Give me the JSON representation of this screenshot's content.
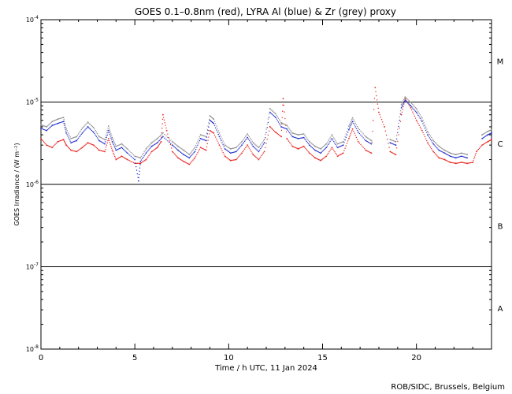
{
  "chart_data": {
    "type": "scatter",
    "title": "GOES 0.1–0.8nm (red), LYRA Al (blue) & Zr (grey) proxy",
    "xlabel": "Time / h UTC, 11 Jan 2024",
    "ylabel": "GOES Irradiance / (W m⁻²)",
    "credit": "ROB/SIDC, Brussels, Belgium",
    "xlim": [
      0,
      24
    ],
    "ylim": [
      1e-08,
      0.0001
    ],
    "yscale": "log",
    "x_ticks": [
      "0",
      "5",
      "10",
      "15",
      "20"
    ],
    "x_tick_values": [
      0,
      5,
      10,
      15,
      20
    ],
    "y_ticks": [
      {
        "value": 0.0001,
        "base": "10",
        "exp": "-4"
      },
      {
        "value": 1e-05,
        "base": "10",
        "exp": "-5"
      },
      {
        "value": 1e-06,
        "base": "10",
        "exp": "-6"
      },
      {
        "value": 1e-07,
        "base": "10",
        "exp": "-7"
      },
      {
        "value": 1e-08,
        "base": "10",
        "exp": "-8"
      }
    ],
    "flare_class_lines": [
      1e-05,
      1e-06,
      1e-07
    ],
    "flare_classes": [
      {
        "label": "M",
        "center": 3.16e-05
      },
      {
        "label": "C",
        "center": 3.16e-06
      },
      {
        "label": "B",
        "center": 3.16e-07
      },
      {
        "label": "A",
        "center": 3.16e-08
      }
    ],
    "colors": {
      "GOES": "#e8231f",
      "LYRA Al": "#1f2fcf",
      "LYRA Zr": "#8c8c8c"
    },
    "series": [
      {
        "name": "GOES",
        "color": "#e8231f",
        "points": [
          [
            0.0,
            3.6e-06
          ],
          [
            0.3,
            3e-06
          ],
          [
            0.6,
            2.8e-06
          ],
          [
            0.9,
            3.3e-06
          ],
          [
            1.2,
            3.5e-06
          ],
          [
            1.35,
            3e-06
          ],
          [
            1.6,
            2.6e-06
          ],
          [
            1.9,
            2.5e-06
          ],
          [
            2.2,
            2.8e-06
          ],
          [
            2.5,
            3.2e-06
          ],
          [
            2.8,
            3e-06
          ],
          [
            3.1,
            2.6e-06
          ],
          [
            3.4,
            2.5e-06
          ],
          [
            3.6,
            3.6e-06
          ],
          [
            3.8,
            2.6e-06
          ],
          [
            4.0,
            2e-06
          ],
          [
            4.3,
            2.2e-06
          ],
          [
            4.6,
            2e-06
          ],
          [
            5.0,
            1.8e-06
          ],
          [
            5.3,
            1.8e-06
          ],
          [
            5.6,
            2e-06
          ],
          [
            5.9,
            2.5e-06
          ],
          [
            6.2,
            2.8e-06
          ],
          [
            6.4,
            3.3e-06
          ],
          [
            6.5,
            7e-06
          ],
          [
            6.7,
            4.5e-06
          ],
          [
            7.0,
            2.5e-06
          ],
          [
            7.3,
            2.1e-06
          ],
          [
            7.6,
            1.9e-06
          ],
          [
            7.9,
            1.75e-06
          ],
          [
            8.2,
            2.1e-06
          ],
          [
            8.5,
            2.8e-06
          ],
          [
            8.8,
            2.6e-06
          ],
          [
            9.0,
            4.5e-06
          ],
          [
            9.2,
            4.2e-06
          ],
          [
            9.5,
            3e-06
          ],
          [
            9.8,
            2.2e-06
          ],
          [
            10.1,
            1.95e-06
          ],
          [
            10.4,
            2e-06
          ],
          [
            10.7,
            2.4e-06
          ],
          [
            11.0,
            3e-06
          ],
          [
            11.3,
            2.3e-06
          ],
          [
            11.6,
            2e-06
          ],
          [
            11.9,
            2.5e-06
          ],
          [
            12.2,
            5e-06
          ],
          [
            12.5,
            4.3e-06
          ],
          [
            12.8,
            3.8e-06
          ],
          [
            12.9,
            1.1e-05
          ],
          [
            13.1,
            3.6e-06
          ],
          [
            13.4,
            2.9e-06
          ],
          [
            13.7,
            2.7e-06
          ],
          [
            14.0,
            2.9e-06
          ],
          [
            14.3,
            2.4e-06
          ],
          [
            14.6,
            2.1e-06
          ],
          [
            14.9,
            1.95e-06
          ],
          [
            15.2,
            2.2e-06
          ],
          [
            15.5,
            2.8e-06
          ],
          [
            15.8,
            2.2e-06
          ],
          [
            16.1,
            2.4e-06
          ],
          [
            16.4,
            3.6e-06
          ],
          [
            16.6,
            4.7e-06
          ],
          [
            16.9,
            3.3e-06
          ],
          [
            17.3,
            2.6e-06
          ],
          [
            17.6,
            2.4e-06
          ],
          [
            17.8,
            1.5e-05
          ],
          [
            18.0,
            7.5e-06
          ],
          [
            18.3,
            5e-06
          ],
          [
            18.6,
            2.5e-06
          ],
          [
            18.9,
            2.3e-06
          ],
          [
            19.2,
            7e-06
          ],
          [
            19.4,
            1.1e-05
          ],
          [
            19.7,
            8.5e-06
          ],
          [
            20.0,
            6e-06
          ],
          [
            20.3,
            4.5e-06
          ],
          [
            20.6,
            3.2e-06
          ],
          [
            20.9,
            2.5e-06
          ],
          [
            21.2,
            2.1e-06
          ],
          [
            21.5,
            2e-06
          ],
          [
            21.8,
            1.85e-06
          ],
          [
            22.1,
            1.8e-06
          ],
          [
            22.4,
            1.85e-06
          ],
          [
            22.7,
            1.8e-06
          ],
          [
            23.0,
            1.85e-06
          ],
          [
            23.2,
            2.5e-06
          ],
          [
            23.5,
            3e-06
          ],
          [
            23.8,
            3.3e-06
          ],
          [
            24.0,
            3.5e-06
          ]
        ]
      },
      {
        "name": "LYRA Al",
        "color": "#1f2fcf",
        "points": [
          [
            0.0,
            4.8e-06
          ],
          [
            0.3,
            4.5e-06
          ],
          [
            0.6,
            5.2e-06
          ],
          [
            0.9,
            5.5e-06
          ],
          [
            1.2,
            5.8e-06
          ],
          [
            1.35,
            4.2e-06
          ],
          [
            1.6,
            3.2e-06
          ],
          [
            1.9,
            3.4e-06
          ],
          [
            2.2,
            4.2e-06
          ],
          [
            2.5,
            5e-06
          ],
          [
            2.8,
            4.3e-06
          ],
          [
            3.1,
            3.4e-06
          ],
          [
            3.4,
            3.1e-06
          ],
          [
            3.6,
            4.5e-06
          ],
          [
            3.8,
            3.3e-06
          ],
          [
            4.0,
            2.6e-06
          ],
          [
            4.3,
            2.8e-06
          ],
          [
            4.6,
            2.4e-06
          ],
          [
            5.0,
            2e-06
          ],
          [
            5.2,
            1.1e-06
          ],
          [
            5.3,
            1.9e-06
          ],
          [
            5.6,
            2.4e-06
          ],
          [
            5.9,
            2.9e-06
          ],
          [
            6.2,
            3.2e-06
          ],
          [
            6.5,
            3.8e-06
          ],
          [
            7.0,
            3e-06
          ],
          [
            7.3,
            2.6e-06
          ],
          [
            7.6,
            2.3e-06
          ],
          [
            7.9,
            2.1e-06
          ],
          [
            8.2,
            2.5e-06
          ],
          [
            8.5,
            3.6e-06
          ],
          [
            8.8,
            3.4e-06
          ],
          [
            9.0,
            6e-06
          ],
          [
            9.2,
            5.5e-06
          ],
          [
            9.5,
            3.8e-06
          ],
          [
            9.8,
            2.7e-06
          ],
          [
            10.1,
            2.4e-06
          ],
          [
            10.4,
            2.5e-06
          ],
          [
            10.7,
            3e-06
          ],
          [
            11.0,
            3.7e-06
          ],
          [
            11.3,
            2.9e-06
          ],
          [
            11.6,
            2.5e-06
          ],
          [
            11.9,
            3.2e-06
          ],
          [
            12.2,
            7.5e-06
          ],
          [
            12.5,
            6.5e-06
          ],
          [
            12.8,
            5e-06
          ],
          [
            13.1,
            4.7e-06
          ],
          [
            13.4,
            3.8e-06
          ],
          [
            13.7,
            3.6e-06
          ],
          [
            14.0,
            3.7e-06
          ],
          [
            14.3,
            3e-06
          ],
          [
            14.6,
            2.6e-06
          ],
          [
            14.9,
            2.4e-06
          ],
          [
            15.2,
            2.8e-06
          ],
          [
            15.5,
            3.6e-06
          ],
          [
            15.8,
            2.8e-06
          ],
          [
            16.1,
            3e-06
          ],
          [
            16.4,
            4.6e-06
          ],
          [
            16.6,
            5.8e-06
          ],
          [
            16.9,
            4.3e-06
          ],
          [
            17.3,
            3.4e-06
          ],
          [
            17.6,
            3.1e-06
          ],
          [
            18.6,
            3.2e-06
          ],
          [
            18.9,
            3e-06
          ],
          [
            19.2,
            8.5e-06
          ],
          [
            19.4,
            1.05e-05
          ],
          [
            19.7,
            9e-06
          ],
          [
            20.0,
            7.5e-06
          ],
          [
            20.3,
            5.8e-06
          ],
          [
            20.6,
            4e-06
          ],
          [
            20.9,
            3.1e-06
          ],
          [
            21.2,
            2.6e-06
          ],
          [
            21.5,
            2.4e-06
          ],
          [
            21.8,
            2.2e-06
          ],
          [
            22.1,
            2.1e-06
          ],
          [
            22.4,
            2.2e-06
          ],
          [
            22.7,
            2.1e-06
          ],
          [
            23.5,
            3.6e-06
          ],
          [
            23.8,
            4e-06
          ],
          [
            24.0,
            4.2e-06
          ]
        ]
      },
      {
        "name": "LYRA Zr",
        "color": "#8c8c8c",
        "points": [
          [
            0.0,
            5.3e-06
          ],
          [
            0.3,
            5e-06
          ],
          [
            0.6,
            5.8e-06
          ],
          [
            0.9,
            6.2e-06
          ],
          [
            1.2,
            6.5e-06
          ],
          [
            1.35,
            4.7e-06
          ],
          [
            1.6,
            3.6e-06
          ],
          [
            1.9,
            3.8e-06
          ],
          [
            2.2,
            4.8e-06
          ],
          [
            2.5,
            5.7e-06
          ],
          [
            2.8,
            4.9e-06
          ],
          [
            3.1,
            3.8e-06
          ],
          [
            3.4,
            3.5e-06
          ],
          [
            3.6,
            5.1e-06
          ],
          [
            3.8,
            3.7e-06
          ],
          [
            4.0,
            2.9e-06
          ],
          [
            4.3,
            3.1e-06
          ],
          [
            4.6,
            2.7e-06
          ],
          [
            5.0,
            2.2e-06
          ],
          [
            5.3,
            2.1e-06
          ],
          [
            5.6,
            2.7e-06
          ],
          [
            5.9,
            3.2e-06
          ],
          [
            6.2,
            3.6e-06
          ],
          [
            6.5,
            4.2e-06
          ],
          [
            7.0,
            3.3e-06
          ],
          [
            7.3,
            2.9e-06
          ],
          [
            7.6,
            2.6e-06
          ],
          [
            7.9,
            2.3e-06
          ],
          [
            8.2,
            2.8e-06
          ],
          [
            8.5,
            4e-06
          ],
          [
            8.8,
            3.8e-06
          ],
          [
            9.0,
            6.8e-06
          ],
          [
            9.2,
            6.2e-06
          ],
          [
            9.5,
            4.2e-06
          ],
          [
            9.8,
            3e-06
          ],
          [
            10.1,
            2.7e-06
          ],
          [
            10.4,
            2.8e-06
          ],
          [
            10.7,
            3.3e-06
          ],
          [
            11.0,
            4.1e-06
          ],
          [
            11.3,
            3.2e-06
          ],
          [
            11.6,
            2.8e-06
          ],
          [
            11.9,
            3.5e-06
          ],
          [
            12.2,
            8.3e-06
          ],
          [
            12.5,
            7.2e-06
          ],
          [
            12.8,
            5.6e-06
          ],
          [
            13.1,
            5.2e-06
          ],
          [
            13.4,
            4.2e-06
          ],
          [
            13.7,
            4e-06
          ],
          [
            14.0,
            4.1e-06
          ],
          [
            14.3,
            3.3e-06
          ],
          [
            14.6,
            2.9e-06
          ],
          [
            14.9,
            2.7e-06
          ],
          [
            15.2,
            3.1e-06
          ],
          [
            15.5,
            4e-06
          ],
          [
            15.8,
            3.1e-06
          ],
          [
            16.1,
            3.3e-06
          ],
          [
            16.4,
            5.1e-06
          ],
          [
            16.6,
            6.4e-06
          ],
          [
            16.9,
            4.8e-06
          ],
          [
            17.3,
            3.8e-06
          ],
          [
            17.6,
            3.4e-06
          ],
          [
            18.6,
            3.5e-06
          ],
          [
            18.9,
            3.3e-06
          ],
          [
            19.2,
            9.3e-06
          ],
          [
            19.4,
            1.15e-05
          ],
          [
            19.7,
            9.9e-06
          ],
          [
            20.0,
            8.3e-06
          ],
          [
            20.3,
            6.4e-06
          ],
          [
            20.6,
            4.4e-06
          ],
          [
            20.9,
            3.4e-06
          ],
          [
            21.2,
            2.9e-06
          ],
          [
            21.5,
            2.6e-06
          ],
          [
            21.8,
            2.4e-06
          ],
          [
            22.1,
            2.3e-06
          ],
          [
            22.4,
            2.4e-06
          ],
          [
            22.7,
            2.3e-06
          ],
          [
            23.5,
            4e-06
          ],
          [
            23.8,
            4.4e-06
          ],
          [
            24.0,
            4.6e-06
          ]
        ]
      }
    ]
  }
}
